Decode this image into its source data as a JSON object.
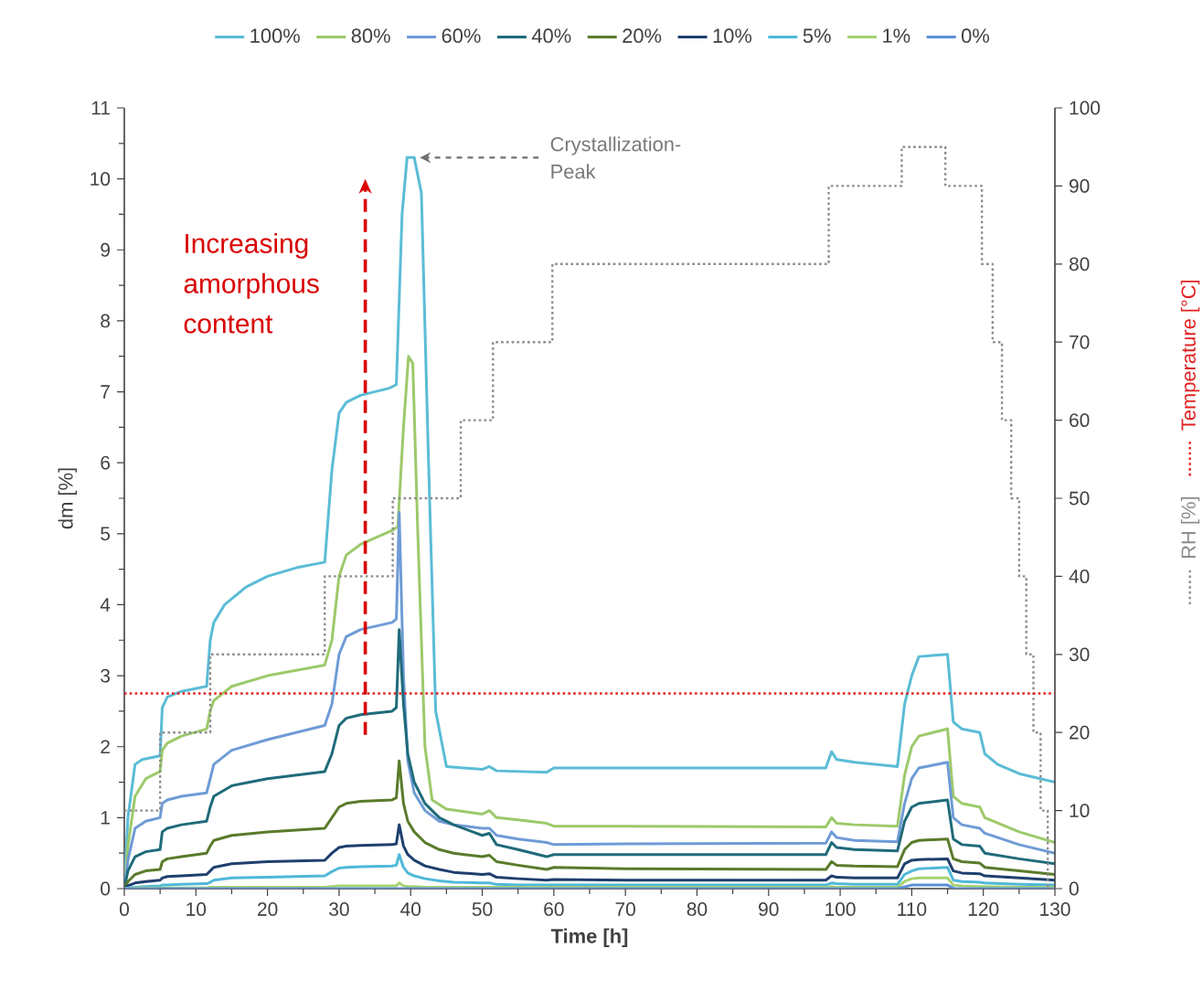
{
  "chart_data": {
    "type": "line",
    "xlabel": "Time [h]",
    "ylabel": "dm [%]",
    "xlim": [
      0,
      130
    ],
    "xticks": [
      0,
      10,
      20,
      30,
      40,
      50,
      60,
      70,
      80,
      90,
      100,
      110,
      120,
      130
    ],
    "ylim": [
      0,
      11
    ],
    "yticks": [
      0,
      1,
      2,
      3,
      4,
      5,
      6,
      7,
      8,
      9,
      10,
      11
    ],
    "y2lim": [
      0,
      100
    ],
    "y2ticks": [
      0,
      10,
      20,
      30,
      40,
      50,
      60,
      70,
      80,
      90,
      100
    ],
    "legend": "top",
    "x": [
      0,
      0.5,
      1.5,
      3,
      5,
      5.3,
      6,
      8,
      11.5,
      12,
      12.5,
      15,
      20,
      28,
      29,
      30,
      31,
      33,
      37.4,
      38,
      38.4,
      39,
      39.6,
      40.5,
      42,
      44,
      46,
      50,
      51,
      52,
      55,
      59,
      60,
      70,
      98,
      98.8,
      99.5,
      102,
      108,
      109,
      110,
      111,
      115,
      115.8,
      117,
      119.5,
      120.2,
      125,
      130
    ],
    "series": [
      {
        "name": "100%",
        "color": "#5bbcd6",
        "x": [
          0,
          0.5,
          1.5,
          2.5,
          5,
          5.3,
          6,
          8,
          11.5,
          12,
          12.5,
          14,
          17,
          20,
          24,
          28,
          29,
          30,
          31,
          33,
          37,
          38,
          38.8,
          39.5,
          40.5,
          41.5,
          42.5,
          43.5,
          45,
          50,
          51,
          52,
          59,
          60,
          70,
          98,
          98.8,
          99.5,
          102,
          108,
          109,
          110,
          111,
          115,
          115.8,
          117,
          119.5,
          120.2,
          122,
          125,
          130
        ],
        "values": [
          0,
          1.0,
          1.75,
          1.82,
          1.87,
          2.55,
          2.7,
          2.78,
          2.85,
          3.5,
          3.75,
          4.0,
          4.25,
          4.4,
          4.52,
          4.6,
          5.9,
          6.7,
          6.85,
          6.95,
          7.05,
          7.1,
          9.5,
          10.3,
          10.3,
          9.8,
          6,
          2.5,
          1.72,
          1.68,
          1.72,
          1.66,
          1.64,
          1.7,
          1.7,
          1.7,
          1.93,
          1.82,
          1.78,
          1.72,
          2.6,
          3.0,
          3.27,
          3.3,
          2.35,
          2.25,
          2.2,
          1.9,
          1.75,
          1.62,
          1.5
        ]
      },
      {
        "name": "80%",
        "color": "#9dc96b",
        "x": [
          0,
          0.5,
          1.5,
          3,
          5,
          5.3,
          6,
          8,
          11.5,
          12,
          12.5,
          15,
          20,
          28,
          29,
          30,
          31,
          33,
          37.5,
          38.2,
          39,
          39.7,
          40.3,
          41,
          42,
          43,
          45,
          50,
          51,
          52,
          55,
          59,
          60,
          70,
          98,
          98.8,
          99.5,
          102,
          108,
          109,
          110,
          111,
          115,
          115.8,
          117,
          119.5,
          120.2,
          125,
          130
        ],
        "values": [
          0,
          0.6,
          1.3,
          1.55,
          1.65,
          1.95,
          2.05,
          2.15,
          2.25,
          2.5,
          2.65,
          2.85,
          3.0,
          3.15,
          3.5,
          4.4,
          4.7,
          4.85,
          5.05,
          5.1,
          6.5,
          7.5,
          7.4,
          5,
          2,
          1.25,
          1.12,
          1.05,
          1.1,
          1.0,
          0.97,
          0.92,
          0.88,
          0.88,
          0.87,
          1.0,
          0.92,
          0.9,
          0.88,
          1.6,
          2.0,
          2.15,
          2.25,
          1.3,
          1.2,
          1.15,
          1.0,
          0.8,
          0.65
        ]
      },
      {
        "name": "60%",
        "color": "#6f9bd6",
        "values": [
          0,
          0.4,
          0.85,
          0.95,
          1.0,
          1.2,
          1.25,
          1.3,
          1.35,
          1.55,
          1.75,
          1.95,
          2.1,
          2.3,
          2.6,
          3.3,
          3.55,
          3.65,
          3.75,
          3.8,
          5.3,
          3.0,
          1.8,
          1.35,
          1.1,
          0.95,
          0.9,
          0.85,
          0.85,
          0.75,
          0.7,
          0.65,
          0.62,
          0.63,
          0.64,
          0.8,
          0.72,
          0.68,
          0.66,
          1.2,
          1.55,
          1.7,
          1.78,
          1.0,
          0.9,
          0.85,
          0.78,
          0.62,
          0.5
        ]
      },
      {
        "name": "40%",
        "color": "#1f6b7a",
        "values": [
          0,
          0.25,
          0.45,
          0.52,
          0.55,
          0.8,
          0.85,
          0.9,
          0.95,
          1.15,
          1.3,
          1.45,
          1.55,
          1.65,
          1.9,
          2.3,
          2.4,
          2.45,
          2.5,
          2.55,
          3.65,
          2.6,
          1.9,
          1.5,
          1.2,
          1.0,
          0.9,
          0.75,
          0.78,
          0.62,
          0.55,
          0.45,
          0.48,
          0.48,
          0.48,
          0.65,
          0.58,
          0.55,
          0.53,
          0.95,
          1.15,
          1.2,
          1.25,
          0.7,
          0.62,
          0.6,
          0.5,
          0.42,
          0.35
        ]
      },
      {
        "name": "20%",
        "color": "#5a7a2a",
        "values": [
          0,
          0.1,
          0.2,
          0.25,
          0.27,
          0.38,
          0.42,
          0.45,
          0.5,
          0.6,
          0.68,
          0.75,
          0.8,
          0.85,
          1.0,
          1.15,
          1.2,
          1.23,
          1.25,
          1.28,
          1.8,
          1.2,
          0.95,
          0.8,
          0.65,
          0.55,
          0.5,
          0.45,
          0.47,
          0.38,
          0.33,
          0.27,
          0.3,
          0.28,
          0.27,
          0.38,
          0.33,
          0.32,
          0.31,
          0.55,
          0.65,
          0.68,
          0.7,
          0.42,
          0.38,
          0.36,
          0.3,
          0.25,
          0.2
        ]
      },
      {
        "name": "10%",
        "color": "#1f3f6e",
        "values": [
          0,
          0.04,
          0.08,
          0.1,
          0.12,
          0.15,
          0.17,
          0.18,
          0.2,
          0.25,
          0.3,
          0.35,
          0.38,
          0.4,
          0.5,
          0.58,
          0.6,
          0.61,
          0.62,
          0.63,
          0.9,
          0.6,
          0.48,
          0.4,
          0.32,
          0.27,
          0.23,
          0.2,
          0.21,
          0.16,
          0.14,
          0.12,
          0.13,
          0.12,
          0.12,
          0.18,
          0.16,
          0.15,
          0.15,
          0.35,
          0.4,
          0.41,
          0.42,
          0.25,
          0.22,
          0.21,
          0.18,
          0.15,
          0.12
        ]
      },
      {
        "name": "5%",
        "color": "#4fb8d8",
        "values": [
          0,
          0.01,
          0.02,
          0.03,
          0.04,
          0.05,
          0.05,
          0.06,
          0.07,
          0.09,
          0.12,
          0.15,
          0.16,
          0.18,
          0.24,
          0.29,
          0.3,
          0.31,
          0.32,
          0.33,
          0.48,
          0.3,
          0.22,
          0.18,
          0.14,
          0.11,
          0.09,
          0.08,
          0.08,
          0.06,
          0.05,
          0.05,
          0.05,
          0.05,
          0.05,
          0.08,
          0.07,
          0.06,
          0.06,
          0.2,
          0.25,
          0.28,
          0.3,
          0.12,
          0.1,
          0.09,
          0.08,
          0.06,
          0.05
        ]
      },
      {
        "name": "1%",
        "color": "#a6d272",
        "values": [
          0,
          0,
          0.01,
          0.01,
          0.01,
          0.01,
          0.01,
          0.01,
          0.01,
          0.02,
          0.02,
          0.02,
          0.02,
          0.02,
          0.03,
          0.04,
          0.04,
          0.04,
          0.04,
          0.04,
          0.08,
          0.04,
          0.03,
          0.03,
          0.02,
          0.02,
          0.02,
          0.02,
          0.02,
          0.02,
          0.02,
          0.02,
          0.02,
          0.02,
          0.02,
          0.03,
          0.02,
          0.02,
          0.02,
          0.1,
          0.14,
          0.15,
          0.15,
          0.05,
          0.04,
          0.03,
          0.03,
          0.02,
          0.02
        ]
      },
      {
        "name": "0%",
        "color": "#5b8fd4",
        "x": [
          0,
          108,
          110,
          115,
          116,
          130
        ],
        "values": [
          0,
          0,
          0.05,
          0.05,
          0,
          0
        ]
      },
      {
        "name": "RH [%]",
        "color": "#8c8c8c",
        "type": "step",
        "axis": "y2",
        "line_style": "dotted",
        "x": [
          0,
          5,
          12,
          28,
          37.5,
          47,
          51.5,
          59.8,
          98.4,
          108.6,
          114.7,
          119.8,
          121.3,
          122.6,
          123.9,
          125,
          126,
          127,
          128,
          129,
          130
        ],
        "values": [
          10,
          20,
          30,
          40,
          50,
          60,
          70,
          80,
          90,
          95,
          90,
          80,
          70,
          60,
          50,
          40,
          30,
          20,
          10,
          0,
          0
        ]
      },
      {
        "name": "Temperature [°C]",
        "color": "#e02020",
        "type": "line",
        "axis": "y2",
        "line_style": "dotted",
        "x": [
          0,
          130
        ],
        "values": [
          25,
          25
        ]
      }
    ],
    "annotations": [
      {
        "text": "Crystallization-Peak",
        "x": 40,
        "y": 10.3
      },
      "Increasing amorphous content"
    ]
  }
}
